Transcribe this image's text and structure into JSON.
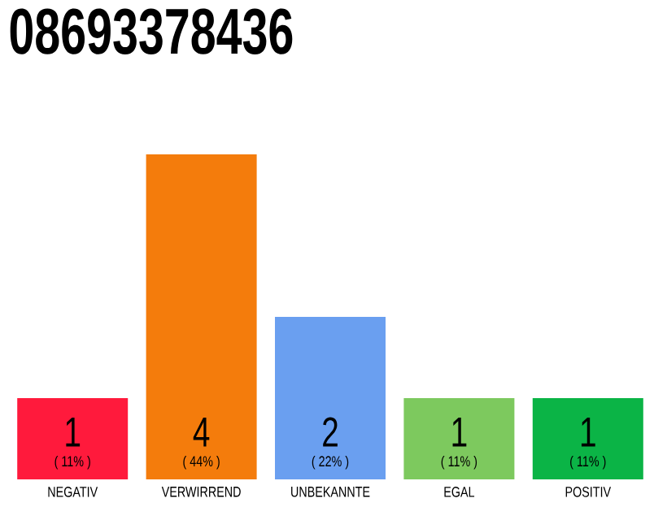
{
  "chart_data": {
    "type": "bar",
    "title": "08693378436",
    "categories": [
      "NEGATIV",
      "VERWIRREND",
      "UNBEKANNTE",
      "EGAL",
      "POSITIV"
    ],
    "values": [
      1,
      4,
      2,
      1,
      1
    ],
    "colors": [
      "#ff1a3c",
      "#f47c0c",
      "#6a9ff0",
      "#7dc95e",
      "#0bb446"
    ],
    "data_labels": true,
    "annotations": [
      "( 11% )",
      "( 44% )",
      "( 22% )",
      "( 11% )",
      "( 11% )"
    ]
  }
}
